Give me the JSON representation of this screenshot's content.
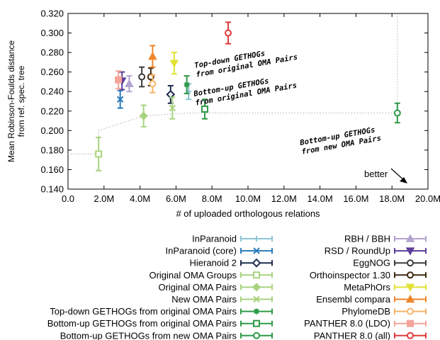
{
  "chart_data": {
    "type": "scatter",
    "xlabel": "# of uploaded orthologous relations",
    "ylabel_lines": [
      "Mean Robinson-Foulds distance",
      "from ref. spec. tree"
    ],
    "xlim": [
      0,
      20000000
    ],
    "ylim": [
      0.14,
      0.32
    ],
    "x_ticks": [
      "0.0",
      "2.0M",
      "4.0M",
      "6.0M",
      "8.0M",
      "10.0M",
      "12.0M",
      "14.0M",
      "16.0M",
      "18.0M",
      "20.0M"
    ],
    "y_ticks": [
      "0.140",
      "0.160",
      "0.180",
      "0.200",
      "0.220",
      "0.240",
      "0.260",
      "0.280",
      "0.300",
      "0.320"
    ],
    "grid": false,
    "series": [
      {
        "name": "InParanoid",
        "color": "#8ec4d6",
        "marker": "plus",
        "x": 6700000,
        "y": 0.24,
        "err": 0.008
      },
      {
        "name": "InParanoid (core)",
        "color": "#2b7bb9",
        "marker": "x",
        "x": 2900000,
        "y": 0.232,
        "err": 0.009
      },
      {
        "name": "Hieranoid 2",
        "color": "#1f2d4f",
        "marker": "diamond",
        "x": 5700000,
        "y": 0.237,
        "err": 0.009
      },
      {
        "name": "Original OMA Groups",
        "color": "#a8d37f",
        "marker": "square",
        "x": 1700000,
        "y": 0.176,
        "err": 0.017
      },
      {
        "name": "Original OMA Pairs",
        "color": "#a8d37f",
        "marker": "filled-diamond",
        "x": 4200000,
        "y": 0.215,
        "err": 0.011
      },
      {
        "name": "New OMA Pairs",
        "color": "#a8d37f",
        "marker": "x",
        "x": 5800000,
        "y": 0.223,
        "err": 0.011
      },
      {
        "name": "Top-down GETHOGs from original OMA Pairs",
        "color": "#2e9a48",
        "marker": "star",
        "x": 6600000,
        "y": 0.247,
        "err": 0.009
      },
      {
        "name": "Bottom-up GETHOGs from original OMA Pairs",
        "color": "#2e9a48",
        "marker": "square",
        "x": 7600000,
        "y": 0.222,
        "err": 0.01
      },
      {
        "name": "Bottom-up GETHOGs from new OMA Pairs",
        "color": "#2e9a48",
        "marker": "circle",
        "x": 18300000,
        "y": 0.218,
        "err": 0.01
      },
      {
        "name": "RBH / BBH",
        "color": "#b3a3cf",
        "marker": "triangle-up",
        "x": 3400000,
        "y": 0.248,
        "err": 0.008
      },
      {
        "name": "RSD / RoundUp",
        "color": "#5c3d9c",
        "marker": "triangle-down",
        "x": 3000000,
        "y": 0.251,
        "err": 0.009
      },
      {
        "name": "EggNOG",
        "color": "#3c3c3c",
        "marker": "circle",
        "x": 4100000,
        "y": 0.255,
        "err": 0.01
      },
      {
        "name": "Orthoinspector 1.30",
        "color": "#3d2a12",
        "marker": "circle",
        "x": 4600000,
        "y": 0.255,
        "err": 0.009
      },
      {
        "name": "MetaPhOrs",
        "color": "#e2e135",
        "marker": "triangle-down",
        "x": 5900000,
        "y": 0.269,
        "err": 0.011
      },
      {
        "name": "Ensembl compara",
        "color": "#f0852a",
        "marker": "triangle-up",
        "x": 4700000,
        "y": 0.276,
        "err": 0.011
      },
      {
        "name": "PhylomeDB",
        "color": "#f6b56a",
        "marker": "circle",
        "x": 4700000,
        "y": 0.248,
        "err": 0.009
      },
      {
        "name": "PANTHER 8.0 (LDO)",
        "color": "#f4a49a",
        "marker": "filled-square",
        "x": 2800000,
        "y": 0.252,
        "err": 0.009
      },
      {
        "name": "PANTHER 8.0 (all)",
        "color": "#e03a3a",
        "marker": "circle",
        "x": 8900000,
        "y": 0.3,
        "err": 0.011
      }
    ],
    "pareto": {
      "name": "pareto frontier",
      "color": "#bbbbbb",
      "x": [
        0,
        1700000,
        1700000,
        4200000,
        6700000,
        18300000,
        18300000
      ],
      "y": [
        0.176,
        0.176,
        0.2,
        0.215,
        0.218,
        0.218,
        0.32
      ]
    },
    "annotations": [
      {
        "text": "Top-down GETHOGs",
        "text2": "from original OMA Pairs"
      },
      {
        "text": "Bottom-up GETHOGs",
        "text2": "from original OMA Pairs"
      },
      {
        "text": "Bottom-up GETHOGs",
        "text2": "from new OMA Pairs"
      },
      {
        "text": "better"
      }
    ]
  }
}
